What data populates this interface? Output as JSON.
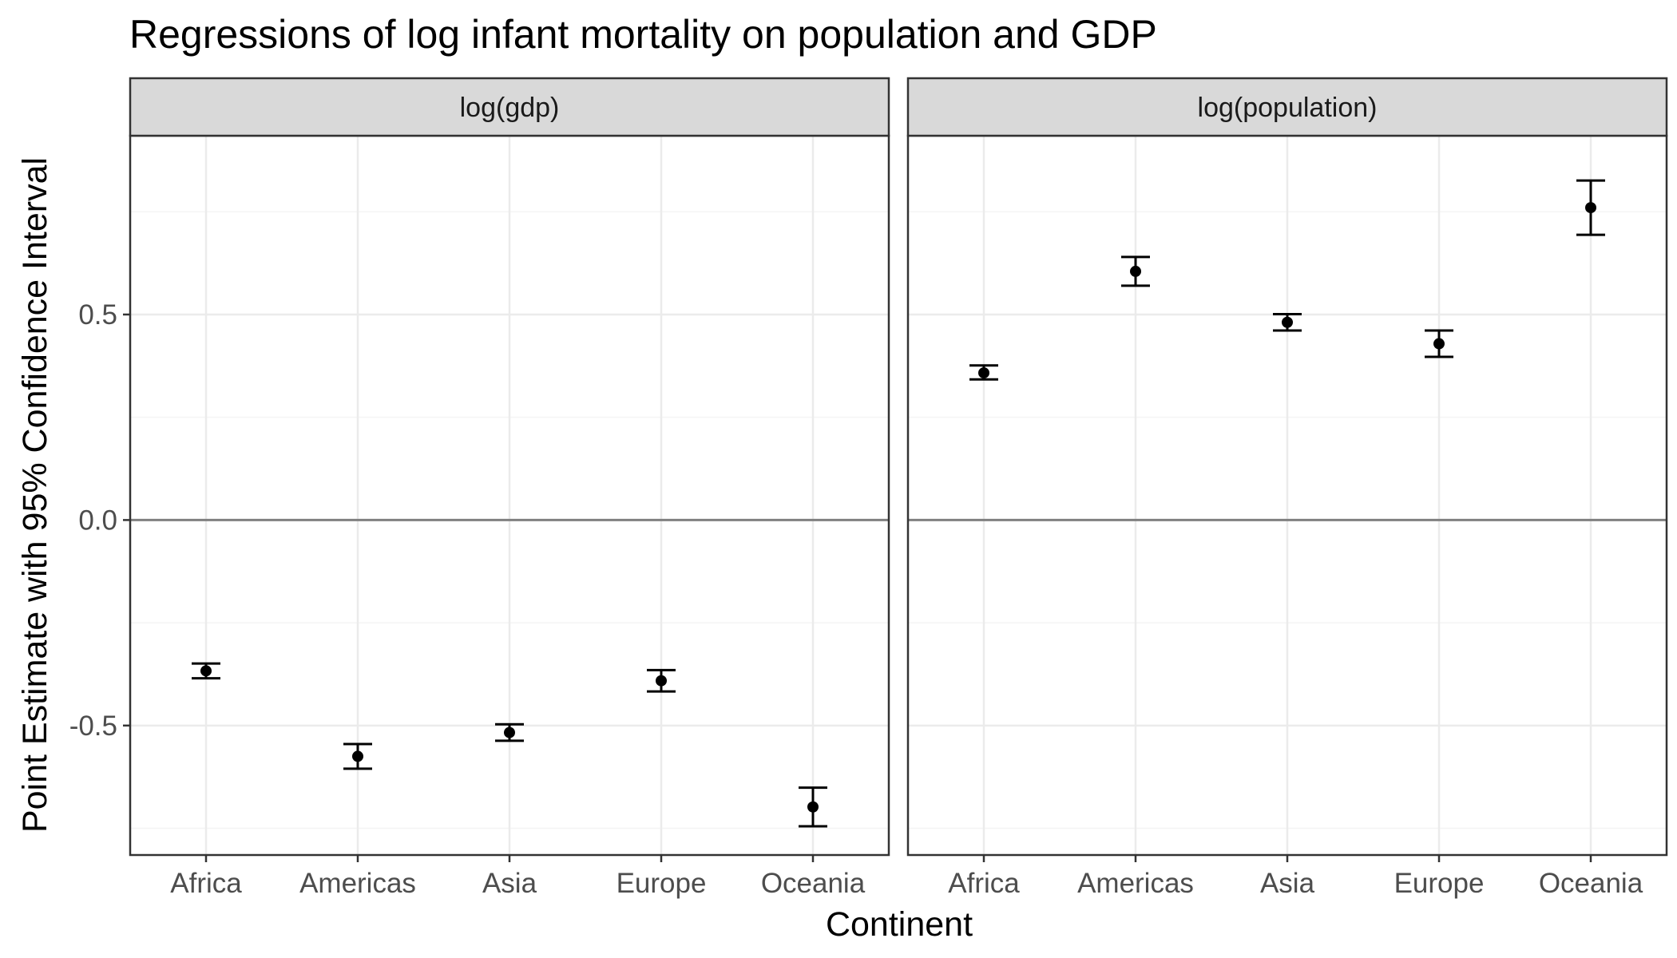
{
  "chart_data": {
    "type": "scatter",
    "title": "Regressions of log infant mortality on population and GDP",
    "xlabel": "Continent",
    "ylabel": "Point Estimate with 95% Confidence Interval",
    "categories": [
      "Africa",
      "Americas",
      "Asia",
      "Europe",
      "Oceania"
    ],
    "ylim": [
      -0.815,
      0.935
    ],
    "yticks": [
      -0.5,
      0.0,
      0.5
    ],
    "ytick_labels": [
      "-0.5",
      "0.0",
      "0.5"
    ],
    "reference_line_y": 0,
    "grid": true,
    "marker": "point with error bars",
    "panels": [
      {
        "strip_label": "log(gdp)",
        "estimates": [
          -0.367,
          -0.575,
          -0.517,
          -0.391,
          -0.698
        ],
        "ci_lower": [
          -0.385,
          -0.605,
          -0.537,
          -0.417,
          -0.745
        ],
        "ci_upper": [
          -0.349,
          -0.545,
          -0.497,
          -0.365,
          -0.651
        ]
      },
      {
        "strip_label": "log(population)",
        "estimates": [
          0.358,
          0.605,
          0.481,
          0.429,
          0.76
        ],
        "ci_lower": [
          0.342,
          0.57,
          0.461,
          0.397,
          0.694
        ],
        "ci_upper": [
          0.376,
          0.64,
          0.501,
          0.461,
          0.826
        ]
      }
    ],
    "colors": {
      "points": "#000000",
      "grid_major": "#ebebeb",
      "grid_minor": "#f4f4f4",
      "zero_line": "#808080",
      "strip_fill": "#d9d9d9",
      "panel_border": "#333333"
    }
  }
}
